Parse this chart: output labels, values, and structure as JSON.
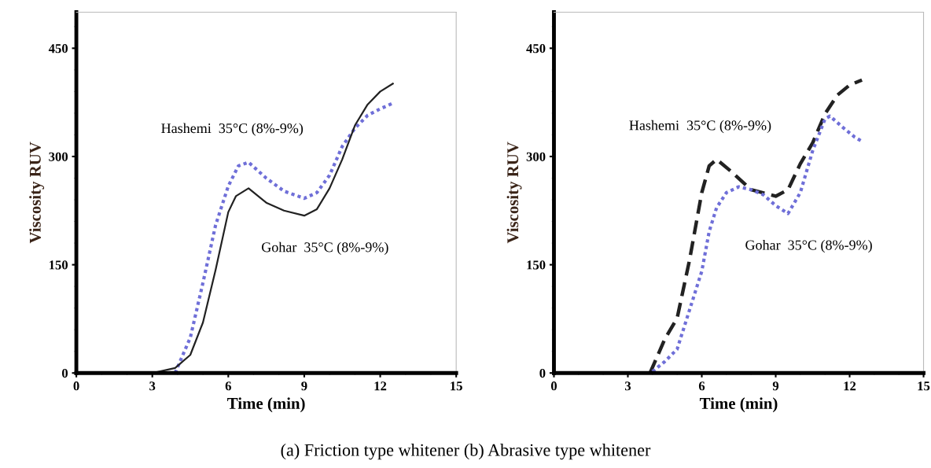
{
  "chart_data": [
    {
      "type": "line",
      "xlabel": "Time (min)",
      "ylabel": "Viscosity RUV",
      "xlim": [
        0,
        15
      ],
      "ylim": [
        0,
        500
      ],
      "xticks": [
        0,
        3,
        6,
        9,
        12,
        15
      ],
      "yticks": [
        0,
        150,
        300,
        450
      ],
      "grid": false,
      "legend": false,
      "series": [
        {
          "name": "Hashemi  35°C (8%-9%)",
          "color": "#6f6fd8",
          "line_style": "dotted",
          "x": [
            3.9,
            4.5,
            5.0,
            5.5,
            6.0,
            6.4,
            6.8,
            7.5,
            8.2,
            9.0,
            9.5,
            10.0,
            10.5,
            11.0,
            11.5,
            12.0,
            12.5
          ],
          "values": [
            0,
            49,
            125,
            205,
            259,
            287,
            292,
            270,
            252,
            242,
            250,
            274,
            314,
            339,
            357,
            366,
            374
          ]
        },
        {
          "name": "Gohar  35°C (8%-9%)",
          "color": "#222222",
          "line_style": "solid",
          "x": [
            3.0,
            3.9,
            4.5,
            5.0,
            5.5,
            6.0,
            6.3,
            6.8,
            7.5,
            8.2,
            9.0,
            9.5,
            10.0,
            10.5,
            11.0,
            11.5,
            12.0,
            12.5
          ],
          "values": [
            0,
            7,
            25,
            70,
            143,
            223,
            245,
            256,
            236,
            225,
            218,
            227,
            256,
            296,
            343,
            372,
            390,
            401
          ]
        }
      ],
      "annotations": [
        "(a) Friction type whitener (b) Abrasive type whitener"
      ]
    },
    {
      "type": "line",
      "xlabel": "Time (min)",
      "ylabel": "Viscosity RUV",
      "xlim": [
        0,
        15
      ],
      "ylim": [
        0,
        500
      ],
      "xticks": [
        0,
        3,
        6,
        9,
        12,
        15
      ],
      "yticks": [
        0,
        150,
        300,
        450
      ],
      "grid": false,
      "legend": false,
      "series": [
        {
          "name": "Hashemi  35°C (8%-9%)",
          "color": "#222222",
          "line_style": "dashed",
          "x": [
            3.9,
            4.5,
            5.0,
            5.5,
            6.0,
            6.3,
            6.6,
            7.2,
            8.0,
            9.0,
            9.5,
            10.0,
            10.5,
            11.0,
            11.5,
            12.0,
            12.5
          ],
          "values": [
            0,
            47,
            76,
            156,
            250,
            287,
            296,
            279,
            254,
            245,
            254,
            290,
            319,
            359,
            385,
            399,
            406
          ]
        },
        {
          "name": "Gohar  35°C (8%-9%)",
          "color": "#6f6fd8",
          "line_style": "dotted",
          "x": [
            4.0,
            4.5,
            5.0,
            5.5,
            6.0,
            6.3,
            6.6,
            7.0,
            7.5,
            8.0,
            8.5,
            9.0,
            9.5,
            10.0,
            10.5,
            11.0,
            11.2,
            11.7,
            12.2,
            12.5
          ],
          "values": [
            2,
            16,
            33,
            87,
            141,
            196,
            229,
            250,
            258,
            254,
            247,
            232,
            221,
            250,
            308,
            352,
            356,
            341,
            327,
            321
          ]
        }
      ]
    }
  ]
}
